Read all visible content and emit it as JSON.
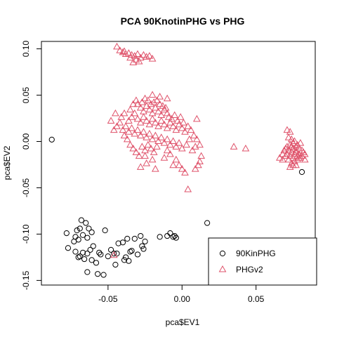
{
  "chart_data": {
    "type": "scatter",
    "title": "PCA 90KnotinPHG vs PHG",
    "xlabel": "pca$EV1",
    "ylabel": "pca$EV2",
    "xlim": [
      -0.095,
      0.09
    ],
    "ylim": [
      -0.155,
      0.108
    ],
    "x_ticks": [
      -0.05,
      0.0,
      0.05
    ],
    "x_tick_labels": [
      "-0.05",
      "0.00",
      "0.05"
    ],
    "y_ticks": [
      -0.15,
      -0.1,
      -0.05,
      0.0,
      0.05,
      0.1
    ],
    "y_tick_labels": [
      "-0.15",
      "-0.10",
      "-0.05",
      "0.00",
      "0.05",
      "0.10"
    ],
    "grid": false,
    "legend_position": "bottom-right",
    "series": [
      {
        "name": "90KinPHG",
        "marker": "circle",
        "color": "#000000",
        "points": [
          [
            -0.088,
            0.002
          ],
          [
            0.081,
            -0.033
          ],
          [
            0.017,
            -0.088
          ],
          [
            -0.078,
            -0.099
          ],
          [
            -0.068,
            -0.085
          ],
          [
            -0.065,
            -0.088
          ],
          [
            -0.063,
            -0.094
          ],
          [
            -0.069,
            -0.094
          ],
          [
            -0.067,
            -0.101
          ],
          [
            -0.072,
            -0.103
          ],
          [
            -0.07,
            -0.106
          ],
          [
            -0.064,
            -0.104
          ],
          [
            -0.061,
            -0.098
          ],
          [
            -0.06,
            -0.113
          ],
          [
            -0.056,
            -0.12
          ],
          [
            -0.052,
            -0.096
          ],
          [
            -0.05,
            -0.124
          ],
          [
            -0.048,
            -0.117
          ],
          [
            -0.046,
            -0.121
          ],
          [
            -0.045,
            -0.133
          ],
          [
            -0.043,
            -0.11
          ],
          [
            -0.04,
            -0.109
          ],
          [
            -0.038,
            -0.125
          ],
          [
            -0.037,
            -0.105
          ],
          [
            -0.036,
            -0.129
          ],
          [
            -0.034,
            -0.118
          ],
          [
            -0.032,
            -0.105
          ],
          [
            -0.03,
            -0.122
          ],
          [
            -0.028,
            -0.102
          ],
          [
            -0.027,
            -0.113
          ],
          [
            -0.026,
            -0.116
          ],
          [
            -0.025,
            -0.108
          ],
          [
            -0.015,
            -0.103
          ],
          [
            -0.01,
            -0.102
          ],
          [
            -0.008,
            -0.099
          ],
          [
            -0.006,
            -0.103
          ],
          [
            -0.005,
            -0.102
          ],
          [
            -0.004,
            -0.104
          ],
          [
            -0.077,
            -0.115
          ],
          [
            -0.072,
            -0.119
          ],
          [
            -0.07,
            -0.125
          ],
          [
            -0.067,
            -0.12
          ],
          [
            -0.066,
            -0.127
          ],
          [
            -0.064,
            -0.121
          ],
          [
            -0.062,
            -0.117
          ],
          [
            -0.061,
            -0.128
          ],
          [
            -0.058,
            -0.131
          ],
          [
            -0.055,
            -0.122
          ],
          [
            -0.053,
            -0.144
          ],
          [
            -0.057,
            -0.143
          ],
          [
            -0.064,
            -0.141
          ],
          [
            -0.069,
            -0.124
          ],
          [
            -0.073,
            -0.108
          ],
          [
            -0.071,
            -0.096
          ],
          [
            -0.044,
            -0.121
          ],
          [
            -0.039,
            -0.128
          ],
          [
            -0.035,
            -0.119
          ]
        ]
      },
      {
        "name": "PHGv2",
        "marker": "triangle",
        "color": "#DF536B",
        "points": [
          [
            -0.044,
            0.102
          ],
          [
            -0.042,
            0.098
          ],
          [
            -0.04,
            0.096
          ],
          [
            -0.038,
            0.094
          ],
          [
            -0.036,
            0.095
          ],
          [
            -0.034,
            0.093
          ],
          [
            -0.032,
            0.092
          ],
          [
            -0.03,
            0.094
          ],
          [
            -0.028,
            0.09
          ],
          [
            -0.026,
            0.093
          ],
          [
            -0.024,
            0.091
          ],
          [
            -0.022,
            0.092
          ],
          [
            -0.02,
            0.089
          ],
          [
            -0.039,
            0.097
          ],
          [
            -0.035,
            0.09
          ],
          [
            -0.031,
            0.088
          ],
          [
            -0.033,
            0.085
          ],
          [
            -0.029,
            0.086
          ],
          [
            -0.046,
            -0.123
          ],
          [
            0.043,
            -0.008
          ],
          [
            0.035,
            -0.006
          ],
          [
            -0.03,
            0.04
          ],
          [
            -0.028,
            0.036
          ],
          [
            -0.026,
            0.032
          ],
          [
            -0.024,
            0.038
          ],
          [
            -0.022,
            0.034
          ],
          [
            -0.02,
            0.03
          ],
          [
            -0.018,
            0.036
          ],
          [
            -0.016,
            0.032
          ],
          [
            -0.014,
            0.028
          ],
          [
            -0.012,
            0.034
          ],
          [
            -0.01,
            0.03
          ],
          [
            -0.032,
            0.03
          ],
          [
            -0.034,
            0.026
          ],
          [
            -0.036,
            0.022
          ],
          [
            -0.03,
            0.024
          ],
          [
            -0.028,
            0.02
          ],
          [
            -0.026,
            0.026
          ],
          [
            -0.024,
            0.022
          ],
          [
            -0.022,
            0.018
          ],
          [
            -0.02,
            0.024
          ],
          [
            -0.018,
            0.02
          ],
          [
            -0.016,
            0.016
          ],
          [
            -0.014,
            0.022
          ],
          [
            -0.012,
            0.018
          ],
          [
            -0.01,
            0.014
          ],
          [
            -0.008,
            0.02
          ],
          [
            -0.006,
            0.016
          ],
          [
            -0.004,
            0.012
          ],
          [
            -0.002,
            0.018
          ],
          [
            0.0,
            0.014
          ],
          [
            0.002,
            0.01
          ],
          [
            -0.038,
            0.016
          ],
          [
            -0.04,
            0.012
          ],
          [
            -0.036,
            0.01
          ],
          [
            -0.034,
            0.014
          ],
          [
            -0.032,
            0.008
          ],
          [
            -0.03,
            0.012
          ],
          [
            -0.028,
            0.006
          ],
          [
            -0.026,
            0.01
          ],
          [
            -0.024,
            0.004
          ],
          [
            -0.022,
            0.008
          ],
          [
            -0.02,
            0.002
          ],
          [
            -0.018,
            0.006
          ],
          [
            -0.016,
            0.0
          ],
          [
            -0.014,
            0.004
          ],
          [
            -0.012,
            -0.002
          ],
          [
            -0.01,
            0.002
          ],
          [
            -0.008,
            -0.004
          ],
          [
            -0.006,
            0.0
          ],
          [
            -0.004,
            -0.006
          ],
          [
            -0.002,
            -0.002
          ],
          [
            0.0,
            -0.008
          ],
          [
            0.003,
            -0.004
          ],
          [
            0.005,
            0.002
          ],
          [
            -0.042,
            0.02
          ],
          [
            -0.044,
            0.016
          ],
          [
            -0.046,
            0.012
          ],
          [
            -0.041,
            0.026
          ],
          [
            -0.039,
            0.03
          ],
          [
            -0.035,
            0.034
          ],
          [
            -0.033,
            0.04
          ],
          [
            -0.031,
            0.044
          ],
          [
            -0.027,
            0.042
          ],
          [
            -0.025,
            0.046
          ],
          [
            -0.023,
            0.044
          ],
          [
            -0.021,
            0.04
          ],
          [
            -0.019,
            0.042
          ],
          [
            -0.017,
            0.044
          ],
          [
            -0.015,
            0.04
          ],
          [
            -0.013,
            0.038
          ],
          [
            -0.011,
            0.036
          ],
          [
            -0.009,
            0.026
          ],
          [
            -0.007,
            0.024
          ],
          [
            -0.005,
            0.028
          ],
          [
            -0.003,
            0.022
          ],
          [
            -0.001,
            0.026
          ],
          [
            0.001,
            0.02
          ],
          [
            0.004,
            0.016
          ],
          [
            0.006,
            0.012
          ],
          [
            0.008,
            0.006
          ],
          [
            -0.027,
            -0.006
          ],
          [
            -0.025,
            -0.01
          ],
          [
            -0.023,
            -0.004
          ],
          [
            -0.021,
            -0.008
          ],
          [
            -0.019,
            -0.012
          ],
          [
            -0.017,
            -0.006
          ],
          [
            -0.029,
            -0.016
          ],
          [
            -0.031,
            -0.012
          ],
          [
            -0.033,
            -0.008
          ],
          [
            -0.035,
            -0.004
          ],
          [
            -0.037,
            0.002
          ],
          [
            -0.039,
            0.006
          ],
          [
            -0.025,
            -0.016
          ],
          [
            -0.024,
            -0.024
          ],
          [
            -0.02,
            -0.02
          ],
          [
            -0.012,
            -0.018
          ],
          [
            -0.008,
            -0.014
          ],
          [
            -0.004,
            -0.02
          ],
          [
            -0.002,
            -0.026
          ],
          [
            0.0,
            -0.03
          ],
          [
            0.002,
            -0.034
          ],
          [
            -0.006,
            -0.026
          ],
          [
            -0.028,
            -0.028
          ],
          [
            -0.018,
            -0.03
          ],
          [
            -0.01,
            -0.01
          ],
          [
            0.01,
            0.002
          ],
          [
            0.012,
            -0.004
          ],
          [
            0.01,
            0.024
          ],
          [
            -0.02,
            0.05
          ],
          [
            -0.015,
            0.048
          ],
          [
            -0.01,
            0.046
          ],
          [
            -0.045,
            0.03
          ],
          [
            -0.048,
            0.022
          ],
          [
            0.013,
            -0.016
          ],
          [
            0.012,
            -0.022
          ],
          [
            0.011,
            -0.026
          ],
          [
            0.004,
            -0.052
          ],
          [
            0.009,
            -0.03
          ],
          [
            0.007,
            -0.01
          ],
          [
            0.009,
            -0.006
          ],
          [
            0.071,
            0.012
          ],
          [
            0.073,
            0.01
          ],
          [
            0.072,
            0.004
          ],
          [
            0.074,
            0.002
          ],
          [
            0.076,
            0.0
          ],
          [
            0.075,
            -0.002
          ],
          [
            0.073,
            -0.004
          ],
          [
            0.071,
            -0.006
          ],
          [
            0.07,
            -0.008
          ],
          [
            0.072,
            -0.01
          ],
          [
            0.074,
            -0.012
          ],
          [
            0.076,
            -0.014
          ],
          [
            0.078,
            -0.016
          ],
          [
            0.08,
            -0.018
          ],
          [
            0.077,
            -0.006
          ],
          [
            0.079,
            -0.008
          ],
          [
            0.081,
            -0.01
          ],
          [
            0.082,
            -0.012
          ],
          [
            0.078,
            -0.02
          ],
          [
            0.076,
            -0.022
          ],
          [
            0.074,
            -0.024
          ],
          [
            0.072,
            -0.02
          ],
          [
            0.07,
            -0.016
          ],
          [
            0.068,
            -0.014
          ],
          [
            0.066,
            -0.018
          ],
          [
            0.068,
            -0.02
          ],
          [
            0.078,
            -0.004
          ],
          [
            0.08,
            -0.002
          ],
          [
            0.075,
            -0.018
          ],
          [
            0.077,
            -0.012
          ],
          [
            0.079,
            -0.014
          ],
          [
            0.073,
            -0.016
          ],
          [
            0.071,
            -0.014
          ],
          [
            0.081,
            -0.016
          ],
          [
            0.083,
            -0.014
          ],
          [
            0.083,
            -0.02
          ],
          [
            0.075,
            -0.026
          ],
          [
            0.073,
            -0.028
          ],
          [
            0.077,
            -0.026
          ],
          [
            0.069,
            -0.01
          ],
          [
            0.075,
            -0.008
          ],
          [
            0.077,
            -0.01
          ],
          [
            0.079,
            -0.018
          ],
          [
            0.074,
            -0.006
          ]
        ]
      }
    ]
  }
}
